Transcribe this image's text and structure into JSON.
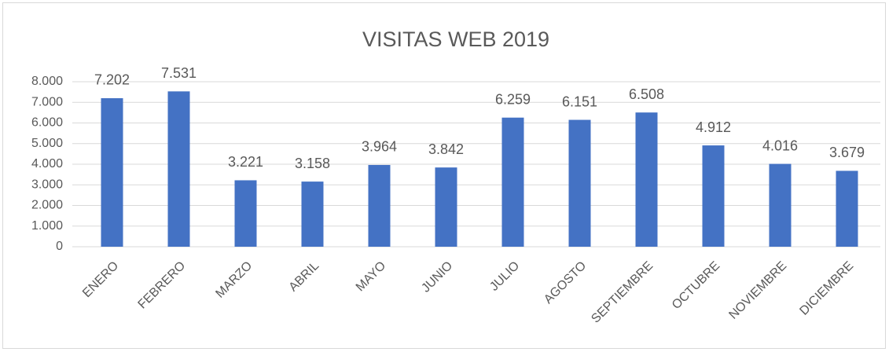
{
  "chart_data": {
    "type": "bar",
    "title": "VISITAS WEB 2019",
    "categories": [
      "ENERO",
      "FEBRERO",
      "MARZO",
      "ABRIL",
      "MAYO",
      "JUNIO",
      "JULIO",
      "AGOSTO",
      "SEPTIEMBRE",
      "OCTUBRE",
      "NOVIEMBRE",
      "DICIEMBRE"
    ],
    "values": [
      7202,
      7531,
      3221,
      3158,
      3964,
      3842,
      6259,
      6151,
      6508,
      4912,
      4016,
      3679
    ],
    "value_labels": [
      "7.202",
      "7.531",
      "3.221",
      "3.158",
      "3.964",
      "3.842",
      "6.259",
      "6.151",
      "6.508",
      "4.912",
      "4.016",
      "3.679"
    ],
    "color": "#4472c4",
    "ylim": [
      0,
      8000
    ],
    "yticks": [
      0,
      {
        "value": 1000,
        "label": "1.000"
      },
      {
        "value": 2000,
        "label": "2.000"
      },
      {
        "value": 3000,
        "label": "3.000"
      },
      {
        "value": 4000,
        "label": "4.000"
      },
      {
        "value": 5000,
        "label": "5.000"
      },
      {
        "value": 6000,
        "label": "6.000"
      },
      {
        "value": 7000,
        "label": "7.000"
      },
      {
        "value": 8000,
        "label": "8.000"
      }
    ],
    "grid": true
  }
}
